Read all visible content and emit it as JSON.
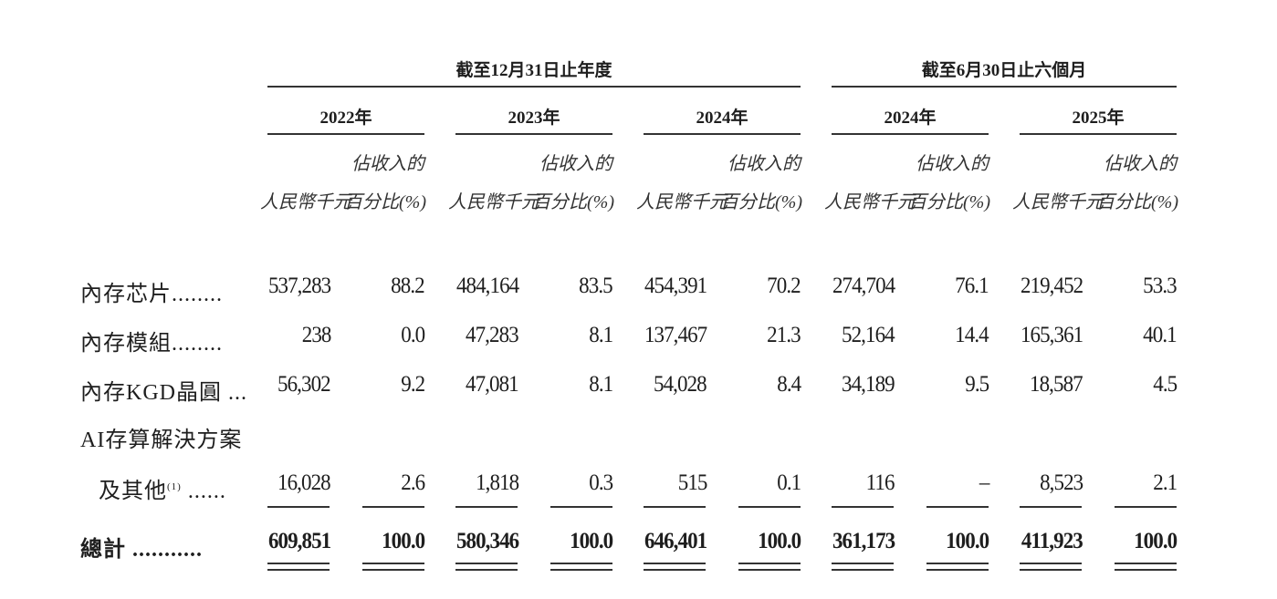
{
  "header": {
    "group_year": "截至12月31日止年度",
    "group_half": "截至6月30日止六個月",
    "periods": [
      "2022年",
      "2023年",
      "2024年",
      "2024年",
      "2025年"
    ],
    "pct_line1": "佔收入的",
    "rmb_label": "人民幣千元",
    "pct_line2": "百分比(%)"
  },
  "rows": [
    {
      "label": "內存芯片........",
      "values": [
        "537,283",
        "88.2",
        "484,164",
        "83.5",
        "454,391",
        "70.2",
        "274,704",
        "76.1",
        "219,452",
        "53.3"
      ]
    },
    {
      "label": "內存模組........",
      "values": [
        "238",
        "0.0",
        "47,283",
        "8.1",
        "137,467",
        "21.3",
        "52,164",
        "14.4",
        "165,361",
        "40.1"
      ]
    },
    {
      "label": "內存KGD晶圓 ...",
      "values": [
        "56,302",
        "9.2",
        "47,081",
        "8.1",
        "54,028",
        "8.4",
        "34,189",
        "9.5",
        "18,587",
        "4.5"
      ]
    },
    {
      "label": "AI存算解決方案",
      "label2": "及其他",
      "footnote": "(1)",
      "label2_dots": " ......",
      "values": [
        "16,028",
        "2.6",
        "1,818",
        "0.3",
        "515",
        "0.1",
        "116",
        "–",
        "8,523",
        "2.1"
      ]
    },
    {
      "label": "總計 ...........",
      "bold": true,
      "values": [
        "609,851",
        "100.0",
        "580,346",
        "100.0",
        "646,401",
        "100.0",
        "361,173",
        "100.0",
        "411,923",
        "100.0"
      ]
    }
  ]
}
